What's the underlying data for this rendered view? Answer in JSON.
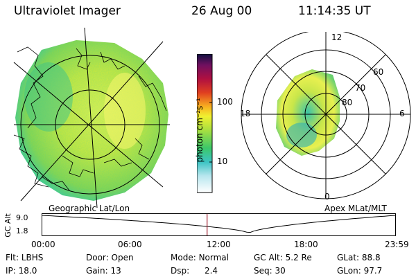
{
  "header": {
    "title": "Ultraviolet Imager",
    "date": "26 Aug 00",
    "time": "11:14:35 UT"
  },
  "colorbar": {
    "label": "photon cm⁻²s⁻¹",
    "ticks": [
      "100",
      "10"
    ]
  },
  "left_panel": {
    "caption": "Geographic Lat/Lon"
  },
  "right_panel": {
    "caption": "Apex MLat/MLT",
    "mlt_labels": [
      "12",
      "18",
      "6",
      "0"
    ],
    "lat_labels": [
      "60",
      "70",
      "80"
    ]
  },
  "timeline": {
    "ylabel": "GC Alt",
    "y_ticks": [
      "9.0",
      "1.8"
    ],
    "x_ticks": [
      "00:00",
      "06:00",
      "12:00",
      "18:00",
      "23:59"
    ],
    "current_time_fraction": 0.468,
    "altitude_min_fraction": 0.587
  },
  "info": {
    "filter_label": "Flt:",
    "filter_value": "LBHS",
    "door_label": "Door:",
    "door_value": "Open",
    "mode_label": "Mode:",
    "mode_value": "Normal",
    "gcalt_label": "GC Alt:",
    "gcalt_value": "5.2 Re",
    "glat_label": "GLat:",
    "glat_value": "88.8",
    "ip_label": "IP:",
    "ip_value": "18.0",
    "gain_label": "Gain:",
    "gain_value": "13",
    "dsp_label": "Dsp:",
    "dsp_value": "2.4",
    "seq_label": "Seq:",
    "seq_value": "30",
    "glon_label": "GLon:",
    "glon_value": "97.7"
  }
}
